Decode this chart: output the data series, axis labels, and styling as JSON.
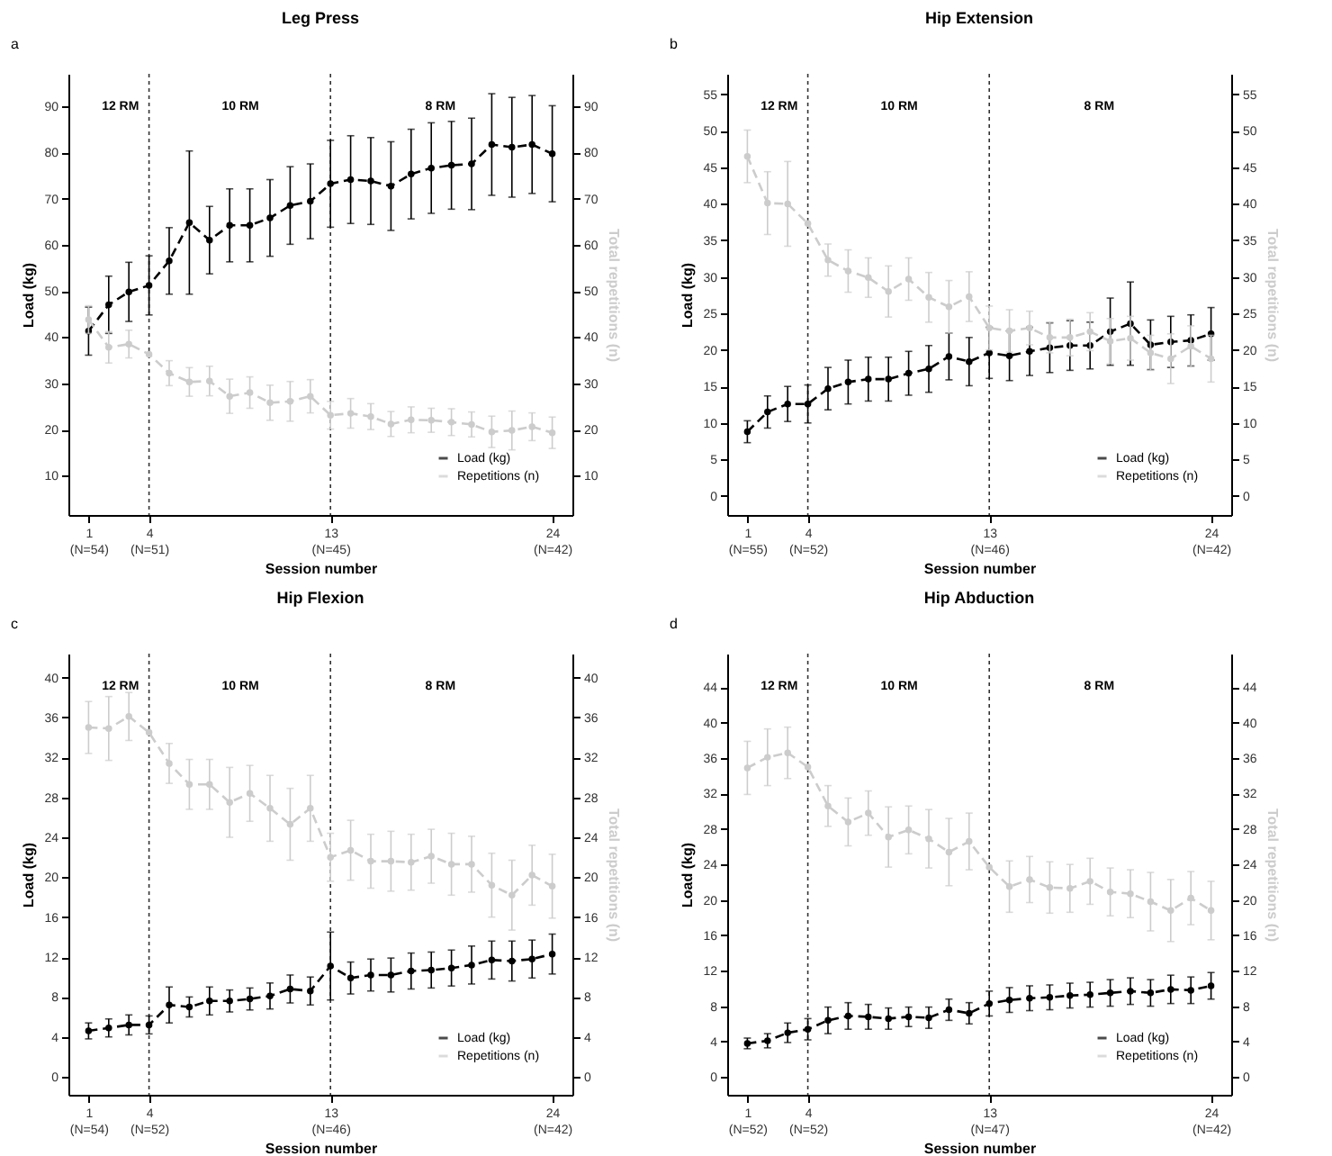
{
  "chart_data": [
    {
      "type": "line",
      "title": "Leg Press",
      "xlabel": "Session number",
      "ylabel": "Load (kg)",
      "y2label": "Total repetitions (n)",
      "categories": [
        "1\n(N=54)",
        null,
        null,
        "4\n(N=51)",
        null,
        null,
        null,
        null,
        null,
        null,
        null,
        null,
        "13\n(N=45)",
        null,
        null,
        null,
        null,
        null,
        null,
        null,
        null,
        null,
        null,
        "24\n(N=42)"
      ],
      "ylim": [
        1.5,
        97
      ],
      "yticks": [
        10,
        20,
        30,
        40,
        50,
        60,
        70,
        80,
        90
      ],
      "y2lim": [
        1.5,
        97
      ],
      "y2ticks": [
        10,
        20,
        30,
        40,
        50,
        60,
        70,
        80,
        90
      ],
      "series": [
        {
          "name": "Load (kg)",
          "color": "#000000",
          "values": [
            41.3,
            47,
            49.8,
            51.2,
            56.5,
            64.8,
            61,
            64.2,
            64.2,
            65.8,
            68.5,
            69.4,
            73.2,
            74.1,
            73.8,
            72.7,
            75.3,
            76.6,
            77.2,
            77.5,
            81.7,
            81.1,
            81.7,
            79.7
          ],
          "errors": [
            5.2,
            6.2,
            6.4,
            6.4,
            7.2,
            15.5,
            7.3,
            7.9,
            7.9,
            8.3,
            8.4,
            8.1,
            9.4,
            9.5,
            9.4,
            9.6,
            9.7,
            9.8,
            9.5,
            9.9,
            11,
            10.8,
            10.6,
            10.4
          ]
        },
        {
          "name": "Repetitions (n)",
          "color": "#cccccc",
          "axis": "y2",
          "values": [
            43.8,
            37.8,
            38.5,
            36.3,
            32.2,
            30.3,
            30.5,
            27.2,
            28,
            25.8,
            26.1,
            27.2,
            23.1,
            23.5,
            22.8,
            21.2,
            22.1,
            22,
            21.6,
            21.1,
            19.5,
            19.8,
            20.6,
            19.3
          ],
          "errors": [
            3,
            3.4,
            3,
            null,
            2.7,
            3.1,
            3.2,
            3.7,
            3.4,
            3.8,
            4.3,
            3.6,
            3,
            3.2,
            2.8,
            2.7,
            2.8,
            2.6,
            2.9,
            2.7,
            3.4,
            4.2,
            3,
            3.4
          ]
        }
      ],
      "line_style": "dashed",
      "marker": "circle",
      "legend": "bottom right",
      "ref_lines": [
        {
          "axis": "x",
          "value": "4\n(N=51)",
          "line_style": "dotted"
        },
        {
          "axis": "x",
          "value": "13\n(N=45)",
          "line_style": "dotted"
        }
      ],
      "annotations": [
        "a",
        "12 RM",
        "10 RM",
        "8 RM"
      ]
    },
    {
      "type": "line",
      "title": "Hip Extension",
      "xlabel": "Session number",
      "ylabel": "Load (kg)",
      "y2label": "Total repetitions (n)",
      "categories": [
        "1\n(N=55)",
        null,
        null,
        "4\n(N=52)",
        null,
        null,
        null,
        null,
        null,
        null,
        null,
        null,
        "13\n(N=46)",
        null,
        null,
        null,
        null,
        null,
        null,
        null,
        null,
        null,
        null,
        "24\n(N=42)"
      ],
      "ylim": [
        -2.6,
        57.8
      ],
      "yticks": [
        0,
        5,
        10,
        15,
        20,
        25,
        30,
        35,
        40,
        45,
        50,
        55
      ],
      "y2lim": [
        -2.6,
        57.8
      ],
      "y2ticks": [
        0,
        5,
        10,
        15,
        20,
        25,
        30,
        35,
        40,
        45,
        50,
        55
      ],
      "series": [
        {
          "name": "Load (kg)",
          "color": "#000000",
          "values": [
            8.8,
            11.5,
            12.6,
            12.6,
            14.7,
            15.6,
            16,
            16,
            16.8,
            17.4,
            19.1,
            18.4,
            19.6,
            19.2,
            19.8,
            20.3,
            20.6,
            20.6,
            22.5,
            23.6,
            20.7,
            21.1,
            21.3,
            22.2
          ],
          "errors": [
            1.5,
            2.2,
            2.4,
            2.6,
            2.9,
            3,
            3,
            3,
            3,
            3.2,
            3.2,
            3.3,
            3.5,
            3.4,
            3.3,
            3.4,
            3.4,
            3.2,
            4.6,
            5.7,
            3.4,
            3.5,
            3.5,
            3.6
          ]
        },
        {
          "name": "Repetitions (n)",
          "color": "#cccccc",
          "axis": "y2",
          "values": [
            46.5,
            40.1,
            40,
            37.3,
            32.3,
            30.8,
            29.9,
            28,
            29.7,
            27.2,
            25.9,
            27.3,
            23,
            22.6,
            23,
            21.7,
            21.7,
            22.5,
            21.2,
            21.6,
            19.6,
            18.8,
            20.5,
            18.8
          ],
          "errors": [
            3.6,
            4.3,
            5.8,
            null,
            2.2,
            2.9,
            2.7,
            3.5,
            2.9,
            3.4,
            3.6,
            3.4,
            3,
            2.9,
            2.3,
            2.1,
            2.5,
            2.6,
            3.1,
            3,
            2.4,
            3.4,
            2.8,
            3.2
          ]
        }
      ],
      "line_style": "dashed",
      "marker": "circle",
      "legend": "bottom right",
      "ref_lines": [
        {
          "axis": "x",
          "value": "4\n(N=52)",
          "line_style": "dotted"
        },
        {
          "axis": "x",
          "value": "13\n(N=46)",
          "line_style": "dotted"
        }
      ],
      "annotations": [
        "b",
        "12 RM",
        "10 RM",
        "8 RM"
      ]
    },
    {
      "type": "line",
      "title": "Hip Flexion",
      "xlabel": "Session number",
      "ylabel": "Load (kg)",
      "y2label": "Total repetitions (n)",
      "categories": [
        "1\n(N=54)",
        null,
        null,
        "4\n(N=52)",
        null,
        null,
        null,
        null,
        null,
        null,
        null,
        null,
        "13\n(N=46)",
        null,
        null,
        null,
        null,
        null,
        null,
        null,
        null,
        null,
        null,
        "24\n(N=42)"
      ],
      "ylim": [
        -1.8,
        42.4
      ],
      "yticks": [
        0,
        4,
        8,
        12,
        16,
        20,
        24,
        28,
        32,
        36,
        40
      ],
      "y2lim": [
        -1.8,
        42.4
      ],
      "y2ticks": [
        0,
        4,
        8,
        12,
        16,
        20,
        24,
        28,
        32,
        36,
        40
      ],
      "series": [
        {
          "name": "Load (kg)",
          "color": "#000000",
          "values": [
            4.6,
            4.9,
            5.2,
            5.2,
            7.2,
            7,
            7.6,
            7.6,
            7.8,
            8.1,
            8.8,
            8.6,
            11.1,
            9.9,
            10.2,
            10.2,
            10.6,
            10.7,
            10.9,
            11.2,
            11.7,
            11.6,
            11.8,
            12.3
          ],
          "errors": [
            0.8,
            0.9,
            1,
            0.9,
            1.8,
            1,
            1.4,
            1.1,
            1.1,
            1.3,
            1.4,
            1.4,
            3.4,
            1.6,
            1.6,
            1.7,
            1.8,
            1.8,
            1.8,
            1.9,
            1.9,
            2,
            1.9,
            2
          ]
        },
        {
          "name": "Repetitions (n)",
          "color": "#cccccc",
          "axis": "y2",
          "values": [
            35,
            34.9,
            36.1,
            34.5,
            31.4,
            29.3,
            29.3,
            27.5,
            28.4,
            26.9,
            25.3,
            26.9,
            22,
            22.7,
            21.6,
            21.6,
            21.5,
            22.1,
            21.3,
            21.3,
            19.2,
            18.2,
            20.2,
            19.1
          ],
          "errors": [
            2.6,
            3.2,
            2.4,
            null,
            2,
            2.5,
            2.5,
            3.5,
            2.8,
            3.3,
            3.6,
            3.3,
            2.4,
            3,
            2.7,
            3,
            2.8,
            2.7,
            3.1,
            2.8,
            3.2,
            3.5,
            3,
            3.2
          ]
        }
      ],
      "line_style": "dashed",
      "marker": "circle",
      "legend": "bottom right",
      "ref_lines": [
        {
          "axis": "x",
          "value": "4\n(N=52)",
          "line_style": "dotted"
        },
        {
          "axis": "x",
          "value": "13\n(N=46)",
          "line_style": "dotted"
        }
      ],
      "annotations": [
        "c",
        "12 RM",
        "10 RM",
        "8 RM"
      ]
    },
    {
      "type": "line",
      "title": "Hip Abduction",
      "xlabel": "Session number",
      "ylabel": "Load (kg)",
      "y2label": "Total repetitions (n)",
      "categories": [
        "1\n(N=52)",
        null,
        null,
        "4\n(N=52)",
        null,
        null,
        null,
        null,
        null,
        null,
        null,
        null,
        "13\n(N=47)",
        null,
        null,
        null,
        null,
        null,
        null,
        null,
        null,
        null,
        null,
        "24\n(N=42)"
      ],
      "ylim": [
        -2,
        47.8
      ],
      "yticks": [
        0,
        4,
        8,
        12,
        16,
        20,
        24,
        28,
        32,
        36,
        40,
        44
      ],
      "y2lim": [
        -2,
        47.8
      ],
      "y2ticks": [
        0,
        4,
        8,
        12,
        16,
        20,
        24,
        28,
        32,
        36,
        40,
        44
      ],
      "series": [
        {
          "name": "Load (kg)",
          "color": "#000000",
          "values": [
            3.8,
            4.1,
            5,
            5.4,
            6.4,
            6.9,
            6.8,
            6.6,
            6.8,
            6.7,
            7.6,
            7.2,
            8.3,
            8.7,
            8.9,
            9,
            9.2,
            9.3,
            9.5,
            9.7,
            9.5,
            9.9,
            9.8,
            10.3
          ],
          "errors": [
            0.6,
            0.8,
            1.1,
            1.2,
            1.5,
            1.5,
            1.4,
            1.2,
            1.1,
            1.2,
            1.2,
            1.2,
            1.4,
            1.4,
            1.4,
            1.4,
            1.4,
            1.4,
            1.5,
            1.5,
            1.5,
            1.6,
            1.5,
            1.5
          ]
        },
        {
          "name": "Repetitions (n)",
          "color": "#cccccc",
          "axis": "y2",
          "values": [
            34.9,
            36.1,
            36.6,
            35,
            30.6,
            28.8,
            29.8,
            27.1,
            27.9,
            26.9,
            25.4,
            26.6,
            23.7,
            21.5,
            22.3,
            21.4,
            21.3,
            22.1,
            20.9,
            20.7,
            19.8,
            18.8,
            20.2,
            18.8
          ],
          "errors": [
            3,
            3.2,
            2.9,
            null,
            2.3,
            2.7,
            2.5,
            3.4,
            2.7,
            3.3,
            3.8,
            3.2,
            null,
            2.9,
            2.6,
            2.9,
            2.7,
            2.6,
            2.7,
            2.7,
            3.3,
            3.5,
            3,
            3.3
          ]
        }
      ],
      "line_style": "dashed",
      "marker": "circle",
      "legend": "bottom right",
      "ref_lines": [
        {
          "axis": "x",
          "value": "4\n(N=52)",
          "line_style": "dotted"
        },
        {
          "axis": "x",
          "value": "13\n(N=47)",
          "line_style": "dotted"
        }
      ],
      "annotations": [
        "d",
        "12 RM",
        "10 RM",
        "8 RM"
      ]
    }
  ]
}
